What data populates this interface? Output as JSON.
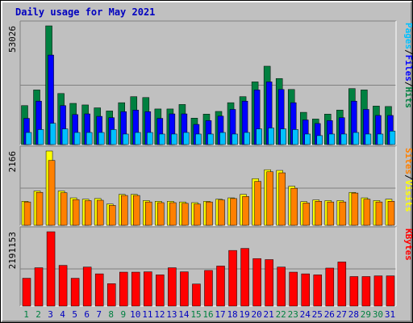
{
  "title": "Daily usage for May 2021",
  "colors": {
    "hits": "#008040",
    "files": "#0000ff",
    "pages": "#00c0ff",
    "visits": "#ffff00",
    "sites": "#ff8000",
    "kbytes": "#ff0000",
    "weekend_label": "#008040",
    "weekday_label": "#0000c0"
  },
  "chart_data": [
    {
      "type": "bar",
      "panel": "hits-files-pages",
      "legend": [
        "Pages",
        "/",
        "Files",
        "/",
        "Hits"
      ],
      "ymax_label": "53026",
      "ymax": 53026,
      "categories": [
        "1",
        "2",
        "3",
        "4",
        "5",
        "6",
        "7",
        "8",
        "9",
        "10",
        "11",
        "12",
        "13",
        "14",
        "15",
        "16",
        "17",
        "18",
        "19",
        "20",
        "21",
        "22",
        "23",
        "24",
        "25",
        "26",
        "27",
        "28",
        "29",
        "30",
        "31"
      ],
      "series": [
        {
          "name": "Hits",
          "values": [
            17400,
            24400,
            53026,
            22800,
            18400,
            17700,
            16400,
            15000,
            18700,
            21400,
            21000,
            15900,
            15900,
            17900,
            11800,
            13600,
            14800,
            18700,
            21400,
            28000,
            35000,
            29500,
            24600,
            14400,
            11400,
            13600,
            15400,
            25000,
            24400,
            17200,
            17000
          ]
        },
        {
          "name": "Files",
          "values": [
            11700,
            19400,
            40000,
            17400,
            13400,
            13700,
            12600,
            12000,
            14700,
            15400,
            14700,
            11700,
            13700,
            13700,
            9000,
            10700,
            12700,
            15700,
            19400,
            24400,
            28000,
            24600,
            18700,
            11000,
            9400,
            10700,
            12000,
            19400,
            15700,
            13000,
            13000
          ]
        },
        {
          "name": "Pages",
          "values": [
            5400,
            6700,
            9500,
            7000,
            5400,
            5400,
            5400,
            6700,
            4700,
            5400,
            5400,
            4700,
            4700,
            5400,
            4700,
            4700,
            5400,
            4700,
            5400,
            7000,
            7400,
            7000,
            6700,
            4700,
            4000,
            4700,
            4700,
            5400,
            4700,
            4700,
            6000
          ]
        }
      ]
    },
    {
      "type": "bar",
      "panel": "visits-sites",
      "legend": [
        "Sites",
        "/",
        "Visits"
      ],
      "ymax_label": "2166",
      "ymax": 2166,
      "categories": [
        "1",
        "2",
        "3",
        "4",
        "5",
        "6",
        "7",
        "8",
        "9",
        "10",
        "11",
        "12",
        "13",
        "14",
        "15",
        "16",
        "17",
        "18",
        "19",
        "20",
        "21",
        "22",
        "23",
        "24",
        "25",
        "26",
        "27",
        "28",
        "29",
        "30",
        "31"
      ],
      "series": [
        {
          "name": "Visits",
          "values": [
            700,
            1000,
            2166,
            1000,
            800,
            760,
            780,
            620,
            900,
            900,
            720,
            700,
            700,
            680,
            660,
            700,
            760,
            800,
            900,
            1360,
            1620,
            1600,
            1140,
            690,
            740,
            720,
            720,
            960,
            800,
            720,
            760
          ]
        },
        {
          "name": "Sites",
          "values": [
            680,
            960,
            1890,
            950,
            750,
            720,
            730,
            580,
            870,
            870,
            680,
            660,
            660,
            640,
            620,
            680,
            740,
            780,
            840,
            1280,
            1560,
            1530,
            1080,
            650,
            700,
            680,
            680,
            940,
            760,
            680,
            700
          ]
        }
      ]
    },
    {
      "type": "bar",
      "panel": "kbytes",
      "legend": [
        "KBytes"
      ],
      "ymax_label": "2191153",
      "ymax": 2191153,
      "categories": [
        "1",
        "2",
        "3",
        "4",
        "5",
        "6",
        "7",
        "8",
        "9",
        "10",
        "11",
        "12",
        "13",
        "14",
        "15",
        "16",
        "17",
        "18",
        "19",
        "20",
        "21",
        "22",
        "23",
        "24",
        "25",
        "26",
        "27",
        "28",
        "29",
        "30",
        "31"
      ],
      "series": [
        {
          "name": "KBytes",
          "values": [
            820000,
            1130000,
            2191153,
            1200000,
            820000,
            1150000,
            950000,
            660000,
            1000000,
            1000000,
            1010000,
            920000,
            1130000,
            1010000,
            650000,
            1050000,
            1180000,
            1640000,
            1700000,
            1400000,
            1370000,
            1150000,
            1000000,
            950000,
            920000,
            1120000,
            1300000,
            870000,
            870000,
            890000,
            890000
          ]
        }
      ]
    }
  ]
}
